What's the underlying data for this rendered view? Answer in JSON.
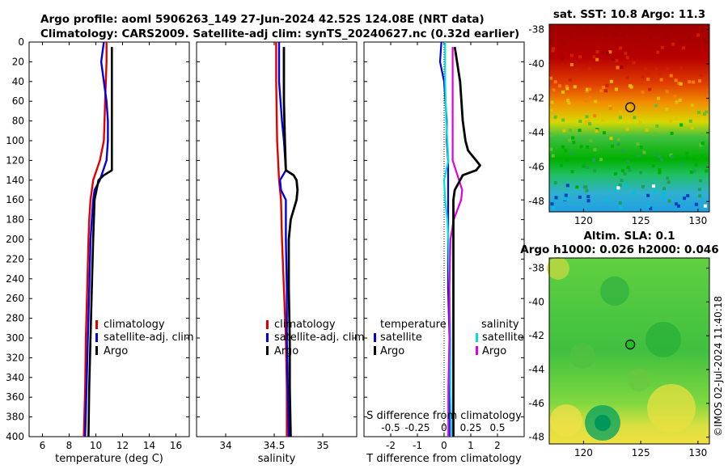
{
  "header": {
    "title_line1": "Argo profile: aoml 5906263_149 27-Jun-2024 42.52S 124.08E (NRT data)",
    "title_line2": "Climatology: CARS2009. Satellite-adj clim: synTS_20240627.nc (0.32d earlier)"
  },
  "colors": {
    "climatology": "#e00000",
    "satellite": "#0000e0",
    "argo": "#000000",
    "sal_sat": "#00e0e0",
    "sal_argo": "#e000e0"
  },
  "depth_ticks": [
    "0",
    "20",
    "40",
    "60",
    "80",
    "100",
    "120",
    "140",
    "160",
    "180",
    "200",
    "220",
    "240",
    "260",
    "280",
    "300",
    "320",
    "340",
    "360",
    "380",
    "400"
  ],
  "chart_data": [
    {
      "type": "line",
      "title": "",
      "xlabel": "temperature (deg C)",
      "ylabel": "depth",
      "xlim": [
        5,
        17
      ],
      "ylim": [
        400,
        0
      ],
      "xticks": [
        "6",
        "8",
        "10",
        "12",
        "14",
        "16"
      ],
      "legend": [
        "climatology",
        "satellite-adj. clim",
        "Argo"
      ],
      "series": [
        {
          "name": "climatology",
          "depth": [
            0,
            20,
            60,
            100,
            120,
            140,
            160,
            180,
            200,
            250,
            300,
            350,
            400
          ],
          "values": [
            10.8,
            10.8,
            10.7,
            10.6,
            10.3,
            9.8,
            9.6,
            9.5,
            9.45,
            9.35,
            9.25,
            9.2,
            9.1
          ]
        },
        {
          "name": "satellite-adj. clim",
          "depth": [
            0,
            20,
            40,
            60,
            80,
            100,
            120,
            140,
            150,
            160,
            180,
            200,
            250,
            300,
            350,
            400
          ],
          "values": [
            10.6,
            10.4,
            10.6,
            10.8,
            10.9,
            10.9,
            10.8,
            10.3,
            9.9,
            9.8,
            9.7,
            9.6,
            9.5,
            9.4,
            9.3,
            9.2
          ]
        },
        {
          "name": "Argo",
          "depth": [
            5,
            20,
            60,
            100,
            120,
            130,
            135,
            140,
            160,
            200,
            250,
            300,
            350,
            400
          ],
          "values": [
            11.2,
            11.2,
            11.2,
            11.2,
            11.2,
            11.2,
            10.6,
            10.2,
            9.9,
            9.8,
            9.7,
            9.6,
            9.5,
            9.45
          ]
        }
      ]
    },
    {
      "type": "line",
      "xlabel": "salinity",
      "ylabel": "depth",
      "xlim": [
        33.7,
        35.35
      ],
      "ylim": [
        400,
        0
      ],
      "xticks": [
        "34",
        "34.5",
        "35"
      ],
      "legend": [
        "climatology",
        "satellite-adj. clim",
        "Argo"
      ],
      "series": [
        {
          "name": "climatology",
          "depth": [
            0,
            40,
            100,
            140,
            160,
            200,
            250,
            300,
            350,
            400
          ],
          "values": [
            34.52,
            34.52,
            34.53,
            34.55,
            34.57,
            34.58,
            34.6,
            34.62,
            34.63,
            34.63
          ]
        },
        {
          "name": "satellite-adj. clim",
          "depth": [
            0,
            40,
            80,
            100,
            130,
            140,
            150,
            160,
            200,
            250,
            300,
            350,
            400
          ],
          "values": [
            34.55,
            34.55,
            34.58,
            34.6,
            34.62,
            34.56,
            34.57,
            34.62,
            34.62,
            34.63,
            34.63,
            34.64,
            34.65
          ]
        },
        {
          "name": "Argo",
          "depth": [
            5,
            60,
            100,
            130,
            135,
            140,
            150,
            160,
            170,
            180,
            200,
            250,
            300,
            350,
            400
          ],
          "values": [
            34.6,
            34.6,
            34.61,
            34.62,
            34.7,
            34.73,
            34.74,
            34.73,
            34.7,
            34.67,
            34.65,
            34.65,
            34.66,
            34.66,
            34.67
          ]
        }
      ]
    },
    {
      "type": "line",
      "xlabel": "T difference from climatology",
      "x2label": "S difference from climatology",
      "ylabel": "depth",
      "xlim": [
        -3,
        3
      ],
      "ylim": [
        400,
        0
      ],
      "xticks": [
        "-2",
        "-1",
        "0",
        "1",
        "2"
      ],
      "x2ticks": [
        "-0.5",
        "-0.25",
        "0",
        "0.25",
        "0.5"
      ],
      "legend_t_title": "temperature",
      "legend_s_title": "salinity",
      "legend_t": [
        "satellite",
        "Argo"
      ],
      "legend_s": [
        "satellite",
        "Argo"
      ],
      "series": [
        {
          "name": "T satellite",
          "depth": [
            0,
            20,
            40,
            60,
            80,
            100,
            120,
            140,
            160,
            200,
            250,
            300,
            350,
            400
          ],
          "values": [
            -0.1,
            -0.15,
            0.0,
            0.05,
            0.1,
            0.1,
            0.15,
            0.15,
            0.15,
            0.15,
            0.15,
            0.2,
            0.2,
            0.2
          ]
        },
        {
          "name": "T Argo",
          "depth": [
            5,
            40,
            80,
            100,
            110,
            120,
            125,
            130,
            135,
            140,
            150,
            160,
            200,
            250,
            300,
            350,
            400
          ],
          "values": [
            0.4,
            0.6,
            0.7,
            0.8,
            0.9,
            1.2,
            1.35,
            1.2,
            0.7,
            0.6,
            0.4,
            0.35,
            0.35,
            0.35,
            0.35,
            0.35,
            0.35
          ]
        },
        {
          "name": "S satellite",
          "depth": [
            0,
            40,
            80,
            100,
            120,
            140,
            160,
            180,
            200,
            250,
            300,
            350,
            400
          ],
          "values": [
            0.01,
            0.01,
            0.02,
            0.03,
            0.04,
            0.0,
            0.01,
            0.03,
            0.04,
            0.05,
            0.06,
            0.06,
            0.07
          ]
        },
        {
          "name": "S Argo",
          "depth": [
            5,
            60,
            100,
            120,
            140,
            150,
            160,
            180,
            200,
            250,
            300,
            350,
            400
          ],
          "values": [
            0.08,
            0.08,
            0.08,
            0.08,
            0.14,
            0.17,
            0.16,
            0.09,
            0.06,
            0.05,
            0.05,
            0.04,
            0.04
          ]
        }
      ]
    }
  ],
  "maps": {
    "sst_title": "sat. SST: 10.8 Argo: 11.3",
    "sla_title1": "Altim. SLA: 0.1",
    "sla_title2": "Argo h1000: 0.026 h2000: 0.046",
    "lat_ticks": [
      "-38",
      "-40",
      "-42",
      "-44",
      "-46",
      "-48"
    ],
    "lon_ticks": [
      "120",
      "125",
      "130"
    ],
    "float_lon": 124.08,
    "float_lat": -42.52
  },
  "footer": {
    "credit": "©IMOS 02-Jul-2024 11:40:18"
  }
}
